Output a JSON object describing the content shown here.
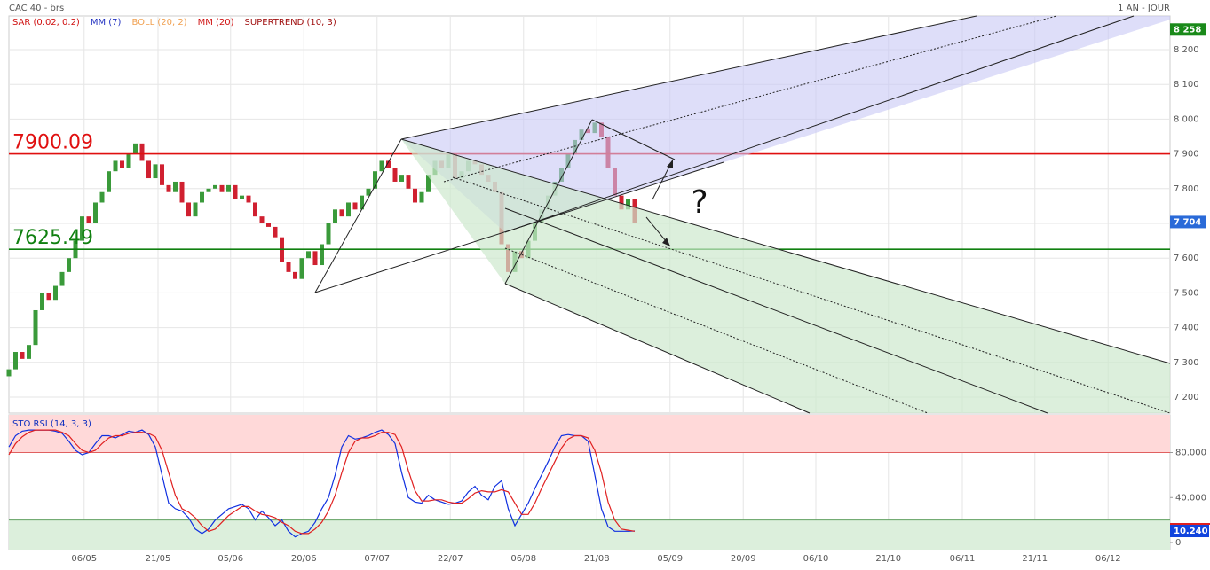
{
  "header": {
    "title": "CAC 40 - brs",
    "period": "1 AN - JOUR"
  },
  "annotations": {
    "question": "?"
  },
  "chart_data": [
    {
      "type": "candlestick",
      "legend": [
        {
          "label": "SAR (0.02, 0.2)",
          "color": "#d01010"
        },
        {
          "label": "MM (7)",
          "color": "#2030c0"
        },
        {
          "label": "BOLL (20, 2)",
          "color": "#f0a050"
        },
        {
          "label": "MM (20)",
          "color": "#d01010"
        },
        {
          "label": "SUPERTREND (10, 3)",
          "color": "#a01010"
        }
      ],
      "up_color": "#3a9a3a",
      "down_color": "#d02030",
      "open": [
        7260,
        7280,
        7330,
        7310,
        7350,
        7450,
        7500,
        7480,
        7520,
        7560,
        7600,
        7650,
        7720,
        7700,
        7760,
        7790,
        7850,
        7880,
        7860,
        7900,
        7930,
        7880,
        7830,
        7870,
        7810,
        7790,
        7820,
        7760,
        7720,
        7760,
        7790,
        7800,
        7810,
        7790,
        7810,
        7770,
        7780,
        7760,
        7720,
        7700,
        7690,
        7660,
        7590,
        7560,
        7540,
        7600,
        7620,
        7580,
        7640,
        7700,
        7740,
        7720,
        7760,
        7740,
        7780,
        7800,
        7850,
        7880,
        7860,
        7820,
        7840,
        7800,
        7760,
        7790,
        7840,
        7880,
        7860,
        7900,
        7830,
        7850,
        7880,
        7870,
        7840,
        7820,
        7790,
        7640,
        7560,
        7620,
        7600,
        7650,
        7700,
        7740,
        7780,
        7820,
        7860,
        7900,
        7940,
        7970,
        7960,
        7990,
        7950,
        7860,
        7780,
        7740,
        7770
      ],
      "close": [
        7280,
        7330,
        7310,
        7350,
        7450,
        7500,
        7480,
        7520,
        7560,
        7600,
        7650,
        7720,
        7700,
        7760,
        7790,
        7850,
        7880,
        7860,
        7900,
        7930,
        7880,
        7830,
        7870,
        7810,
        7790,
        7820,
        7760,
        7720,
        7760,
        7790,
        7800,
        7810,
        7790,
        7810,
        7770,
        7780,
        7760,
        7720,
        7700,
        7690,
        7660,
        7590,
        7560,
        7540,
        7600,
        7620,
        7580,
        7640,
        7700,
        7740,
        7720,
        7760,
        7740,
        7780,
        7800,
        7850,
        7880,
        7860,
        7820,
        7840,
        7800,
        7760,
        7790,
        7840,
        7880,
        7860,
        7900,
        7830,
        7850,
        7880,
        7870,
        7840,
        7820,
        7790,
        7640,
        7560,
        7620,
        7600,
        7650,
        7700,
        7740,
        7780,
        7820,
        7860,
        7900,
        7940,
        7970,
        7960,
        7990,
        7950,
        7860,
        7780,
        7740,
        7770,
        7700
      ],
      "xlim": [
        0,
        174.4
      ],
      "xticks": [
        {
          "value": 11.3,
          "label": "06/05"
        },
        {
          "value": 22.4,
          "label": "21/05"
        },
        {
          "value": 33.3,
          "label": "05/06"
        },
        {
          "value": 44.3,
          "label": "20/06"
        },
        {
          "value": 55.3,
          "label": "07/07"
        },
        {
          "value": 66.3,
          "label": "22/07"
        },
        {
          "value": 77.3,
          "label": "06/08"
        },
        {
          "value": 88.3,
          "label": "21/08"
        },
        {
          "value": 99.3,
          "label": "05/09"
        },
        {
          "value": 110.3,
          "label": "20/09"
        },
        {
          "value": 121.2,
          "label": "06/10"
        },
        {
          "value": 132.1,
          "label": "21/10"
        },
        {
          "value": 143.2,
          "label": "06/11"
        },
        {
          "value": 154.1,
          "label": "21/11"
        },
        {
          "value": 165.1,
          "label": "06/12"
        }
      ],
      "ylim": [
        7154,
        8297
      ],
      "yticks": [
        {
          "value": 7200,
          "label": "7 200"
        },
        {
          "value": 7300,
          "label": "7 300"
        },
        {
          "value": 7400,
          "label": "7 400"
        },
        {
          "value": 7500,
          "label": "7 500"
        },
        {
          "value": 7600,
          "label": "7 600"
        },
        {
          "value": 7700,
          "label": "7 700"
        },
        {
          "value": 7800,
          "label": "7 800"
        },
        {
          "value": 7900,
          "label": "7 900"
        },
        {
          "value": 8000,
          "label": "8 000"
        },
        {
          "value": 8100,
          "label": "8 100"
        },
        {
          "value": 8200,
          "label": "8 200"
        }
      ],
      "grid": true,
      "levels": [
        {
          "value": 7900.09,
          "color": "#e01010"
        },
        {
          "value": 7625.49,
          "color": "#108010"
        }
      ],
      "badges": [
        {
          "value": 8258,
          "label": "8 258",
          "color": "#1a8a1a"
        },
        {
          "value": 7704,
          "label": "7 704",
          "color": "#2a6ad8"
        }
      ]
    },
    {
      "type": "line",
      "title": "STO RSI (14, 3, 3)",
      "series": [
        {
          "color": "#1030e0",
          "values": [
            85,
            95,
            99,
            100,
            100,
            100,
            100,
            99,
            97,
            90,
            82,
            78,
            80,
            88,
            95,
            95,
            93,
            96,
            99,
            98,
            100,
            96,
            85,
            60,
            35,
            30,
            28,
            22,
            12,
            8,
            12,
            20,
            25,
            30,
            32,
            34,
            30,
            20,
            28,
            22,
            15,
            20,
            10,
            5,
            8,
            10,
            18,
            30,
            40,
            60,
            85,
            95,
            92,
            93,
            95,
            98,
            100,
            96,
            88,
            62,
            40,
            36,
            35,
            42,
            38,
            36,
            34,
            35,
            37,
            45,
            50,
            42,
            38,
            50,
            55,
            30,
            15,
            25,
            35,
            48,
            60,
            72,
            85,
            95,
            96,
            95,
            95,
            90,
            60,
            30,
            14,
            10,
            10,
            10,
            10.24
          ]
        },
        {
          "color": "#e02020",
          "values": [
            78,
            88,
            94,
            98,
            100,
            100,
            100,
            100,
            98,
            95,
            88,
            82,
            80,
            82,
            88,
            93,
            95,
            95,
            97,
            98,
            98,
            97,
            94,
            82,
            62,
            42,
            30,
            27,
            22,
            15,
            10,
            12,
            18,
            24,
            28,
            32,
            32,
            28,
            25,
            24,
            22,
            18,
            15,
            10,
            8,
            8,
            12,
            18,
            28,
            42,
            62,
            80,
            90,
            93,
            93,
            95,
            98,
            98,
            96,
            85,
            64,
            46,
            37,
            37,
            38,
            38,
            36,
            35,
            35,
            39,
            44,
            46,
            45,
            45,
            47,
            45,
            35,
            25,
            25,
            35,
            48,
            60,
            72,
            84,
            92,
            95,
            95,
            93,
            82,
            62,
            36,
            20,
            12,
            11,
            10
          ]
        }
      ],
      "ylim": [
        -6.3,
        113.5
      ],
      "yticks": [
        0,
        {
          "value": 40,
          "label": "40.000"
        },
        {
          "value": 80,
          "label": "80.000"
        }
      ],
      "zones": [
        {
          "value": 80,
          "side": "above",
          "color": "#ffd9d9",
          "line": "#e06060"
        },
        {
          "value": 20,
          "side": "below",
          "color": "#dcefdc",
          "line": "#60a060"
        }
      ],
      "badges": [
        {
          "value": 10.24,
          "label": "10.240",
          "color": "#1144dd"
        }
      ]
    }
  ]
}
